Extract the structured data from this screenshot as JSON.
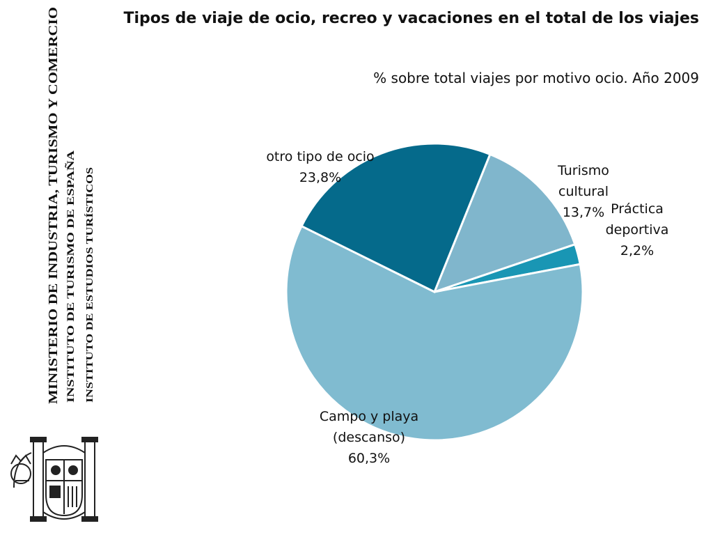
{
  "sidebar": {
    "ministry": "MINISTERIO DE INDUSTRIA, TURISMO Y COMERCIO",
    "institute": "INSTITUTO DE TURISMO DE ESPAÑA",
    "studies": "INSTITUTO DE ESTUDIOS TURÍSTICOS"
  },
  "chart_data": {
    "type": "pie",
    "title": "Tipos de viaje de ocio, recreo y vacaciones en el total de los viajes",
    "subtitle": "% sobre total viajes por motivo ocio. Año 2009",
    "categories": [
      "Turismo cultural",
      "Práctica deportiva",
      "Campo y playa (descanso)",
      "otro tipo de ocio"
    ],
    "values": [
      13.7,
      2.2,
      60.3,
      23.8
    ],
    "value_labels": [
      "13,7%",
      "2,2%",
      "60,3%",
      "23,8%"
    ],
    "colors": [
      "#80b6cc",
      "#1996b4",
      "#80bbd0",
      "#056a8b"
    ]
  }
}
